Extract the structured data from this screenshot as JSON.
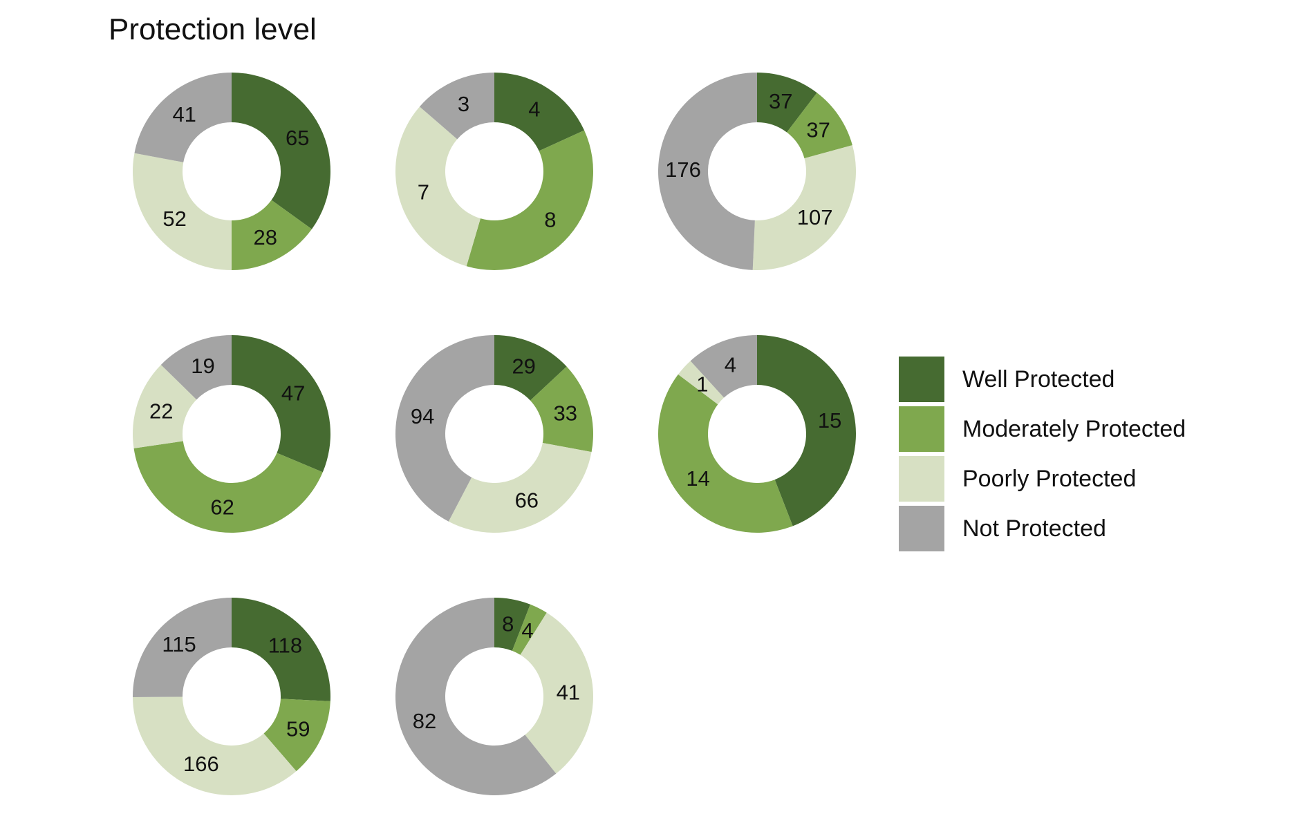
{
  "chart_data": {
    "type": "donut",
    "title": "Protection level",
    "categories": [
      "Well Protected",
      "Moderately Protected",
      "Poorly Protected",
      "Not Protected"
    ],
    "colors": {
      "Well Protected": "#466b31",
      "Moderately Protected": "#7fa84e",
      "Poorly Protected": "#d7e0c3",
      "Not Protected": "#a4a4a4"
    },
    "legend_position": "right",
    "panels": [
      {
        "values": {
          "Well Protected": 65,
          "Moderately Protected": 28,
          "Poorly Protected": 52,
          "Not Protected": 41
        }
      },
      {
        "values": {
          "Well Protected": 4,
          "Moderately Protected": 8,
          "Poorly Protected": 7,
          "Not Protected": 3
        }
      },
      {
        "values": {
          "Well Protected": 37,
          "Moderately Protected": 37,
          "Poorly Protected": 107,
          "Not Protected": 176
        }
      },
      {
        "values": {
          "Well Protected": 47,
          "Moderately Protected": 62,
          "Poorly Protected": 22,
          "Not Protected": 19
        }
      },
      {
        "values": {
          "Well Protected": 29,
          "Moderately Protected": 33,
          "Poorly Protected": 66,
          "Not Protected": 94
        }
      },
      {
        "values": {
          "Well Protected": 15,
          "Moderately Protected": 14,
          "Poorly Protected": 1,
          "Not Protected": 4
        }
      },
      {
        "values": {
          "Well Protected": 118,
          "Moderately Protected": 59,
          "Poorly Protected": 166,
          "Not Protected": 115
        }
      },
      {
        "values": {
          "Well Protected": 8,
          "Moderately Protected": 4,
          "Poorly Protected": 41,
          "Not Protected": 82
        }
      }
    ]
  }
}
